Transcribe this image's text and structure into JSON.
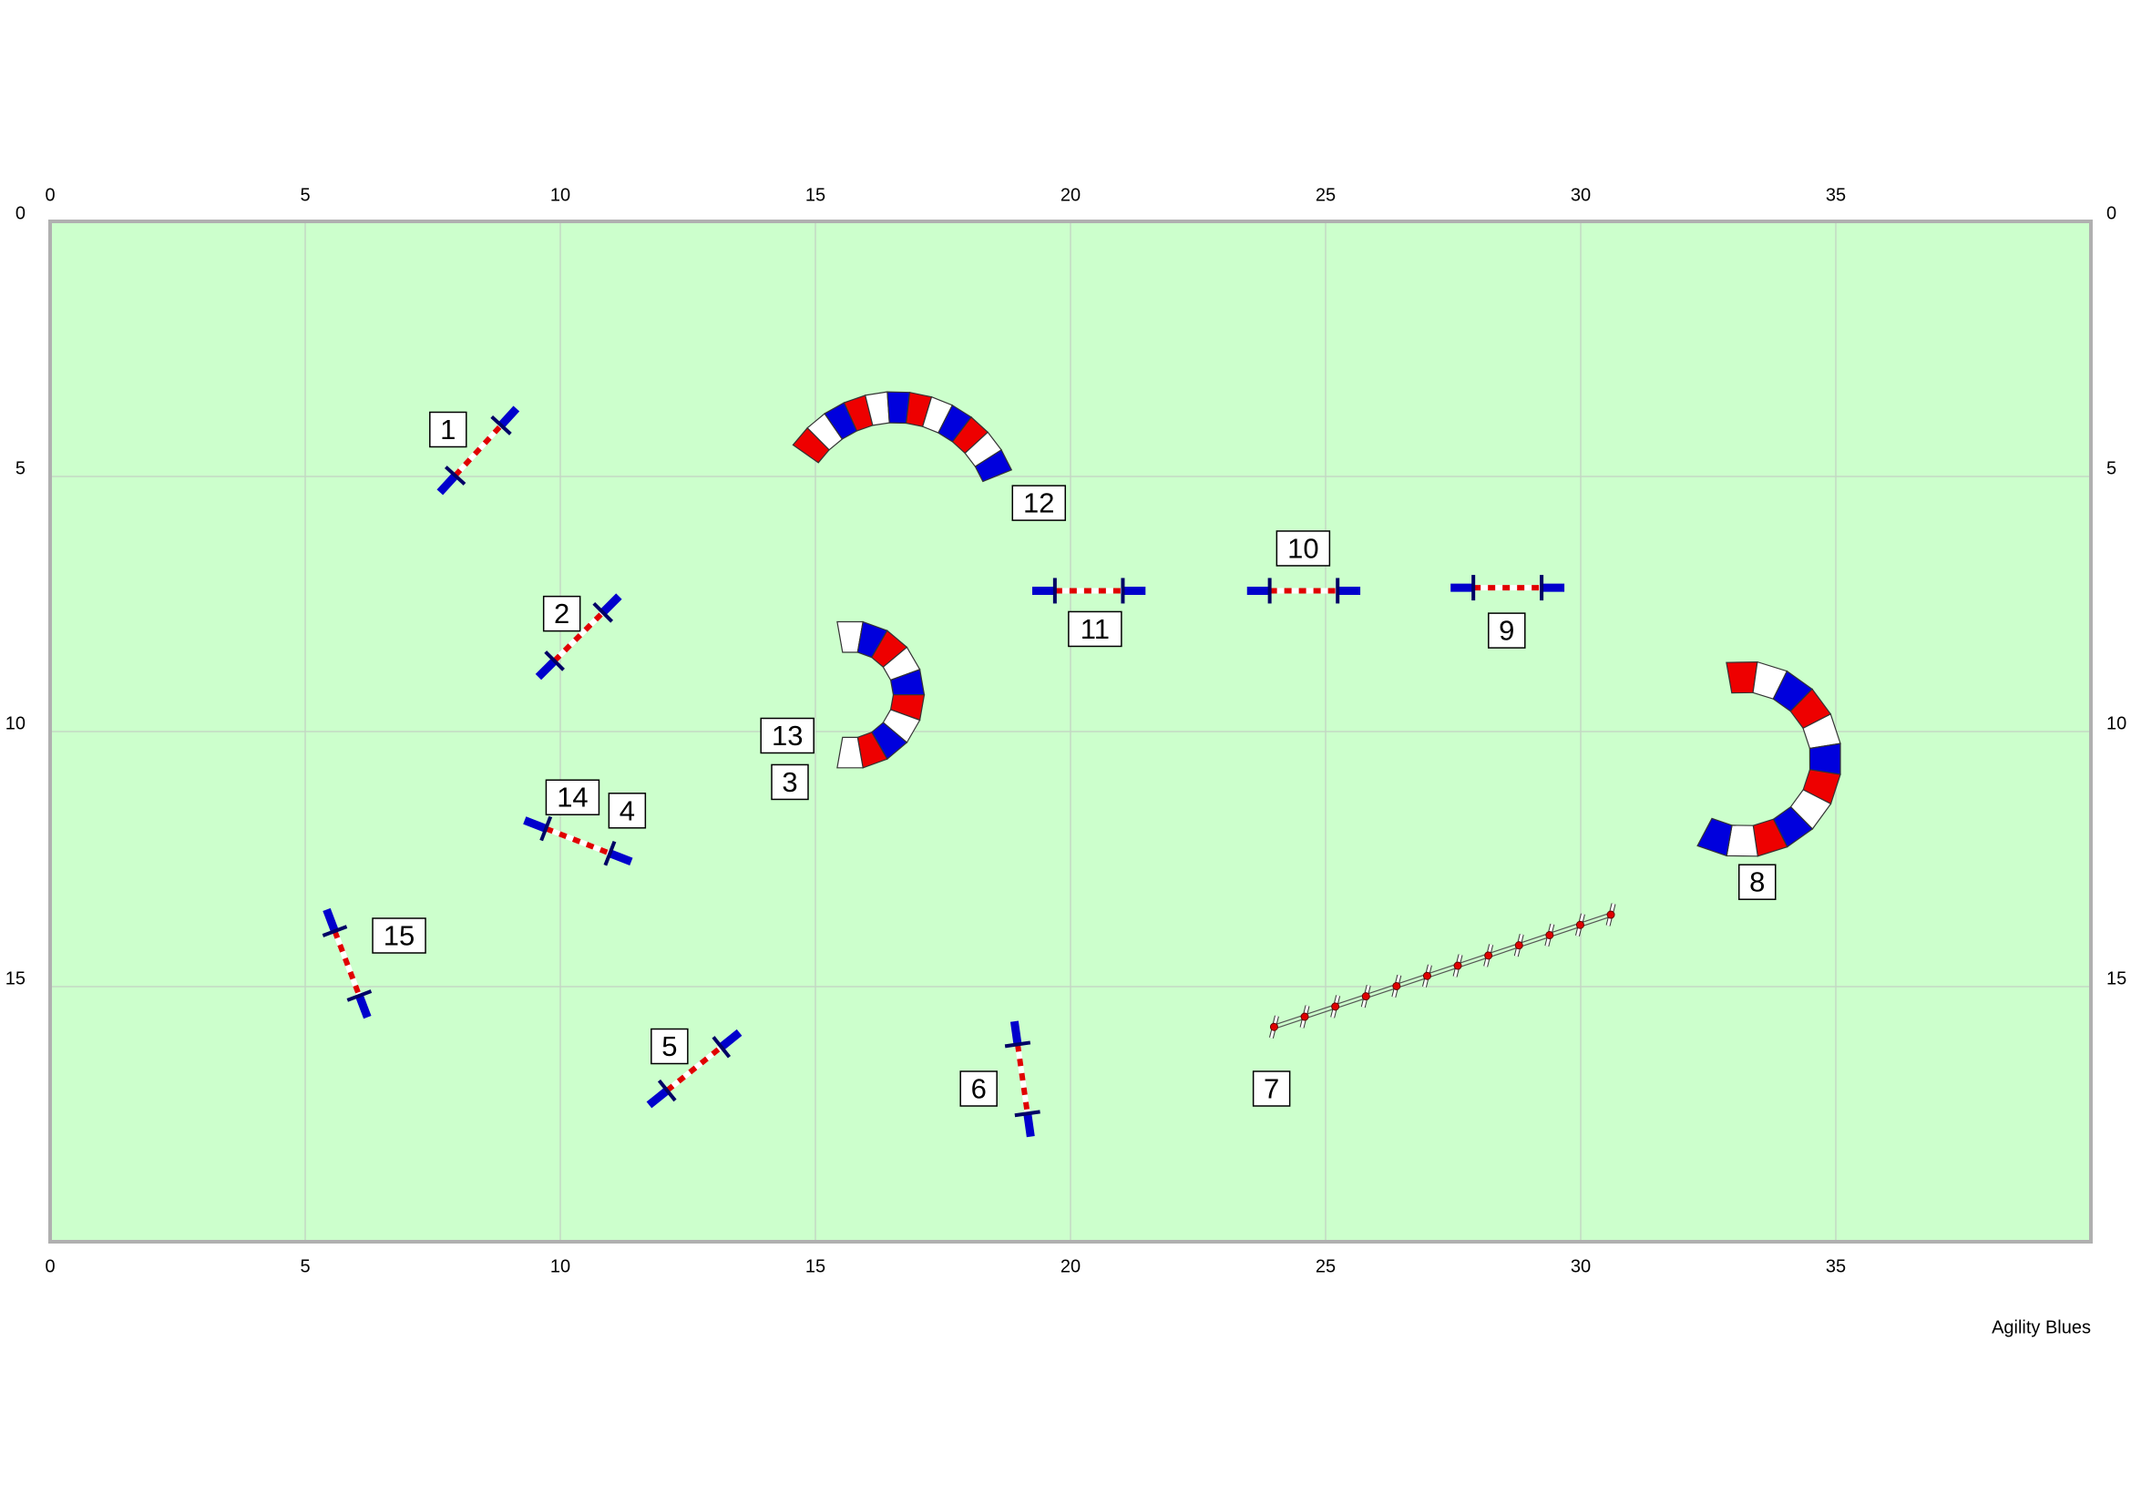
{
  "axes": {
    "x_ticks": [
      0,
      5,
      10,
      15,
      20,
      25,
      30,
      35
    ],
    "y_ticks": [
      0,
      5,
      10,
      15
    ]
  },
  "obstacles": [
    {
      "label": "1"
    },
    {
      "label": "2"
    },
    {
      "label": "14"
    },
    {
      "label": "4"
    },
    {
      "label": "15"
    },
    {
      "label": "5"
    },
    {
      "label": "6"
    },
    {
      "label": "11"
    },
    {
      "label": "10"
    },
    {
      "label": "9"
    },
    {
      "label": "7"
    },
    {
      "label": "12"
    },
    {
      "label": "13"
    },
    {
      "label": "3"
    },
    {
      "label": "8"
    }
  ],
  "footer": "Agility Blues"
}
